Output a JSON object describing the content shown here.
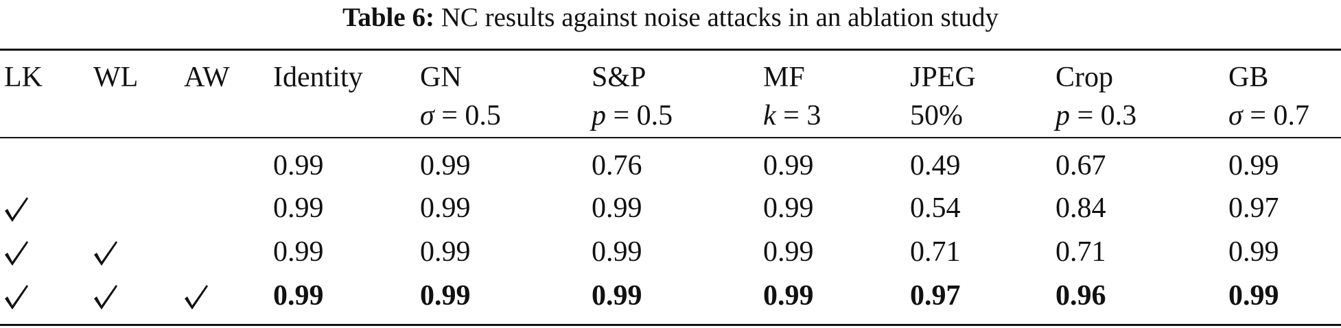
{
  "table": {
    "caption_label": "Table 6:",
    "caption_text": "NC results against noise attacks in an ablation study",
    "headers": [
      {
        "name": "LK",
        "sub_var": "",
        "sub_rest": ""
      },
      {
        "name": "WL",
        "sub_var": "",
        "sub_rest": ""
      },
      {
        "name": "AW",
        "sub_var": "",
        "sub_rest": ""
      },
      {
        "name": "Identity",
        "sub_var": "",
        "sub_rest": ""
      },
      {
        "name": "GN",
        "sub_var": "σ",
        "sub_rest": " = 0.5"
      },
      {
        "name": "S&P",
        "sub_var": "p",
        "sub_rest": " = 0.5"
      },
      {
        "name": "MF",
        "sub_var": "k",
        "sub_rest": " = 3"
      },
      {
        "name": "JPEG",
        "sub_var": "",
        "sub_rest": "50%"
      },
      {
        "name": "Crop",
        "sub_var": "p",
        "sub_rest": " = 0.3"
      },
      {
        "name": "GB",
        "sub_var": "σ",
        "sub_rest": " = 0.7"
      }
    ],
    "check_symbol": "√",
    "rows": [
      {
        "lk": false,
        "wl": false,
        "aw": false,
        "values": [
          "0.99",
          "0.99",
          "0.76",
          "0.99",
          "0.49",
          "0.67",
          "0.99"
        ],
        "bold": false
      },
      {
        "lk": true,
        "wl": false,
        "aw": false,
        "values": [
          "0.99",
          "0.99",
          "0.99",
          "0.99",
          "0.54",
          "0.84",
          "0.97"
        ],
        "bold": false
      },
      {
        "lk": true,
        "wl": true,
        "aw": false,
        "values": [
          "0.99",
          "0.99",
          "0.99",
          "0.99",
          "0.71",
          "0.71",
          "0.99"
        ],
        "bold": false
      },
      {
        "lk": true,
        "wl": true,
        "aw": true,
        "values": [
          "0.99",
          "0.99",
          "0.99",
          "0.99",
          "0.97",
          "0.96",
          "0.99"
        ],
        "bold": true
      }
    ]
  }
}
